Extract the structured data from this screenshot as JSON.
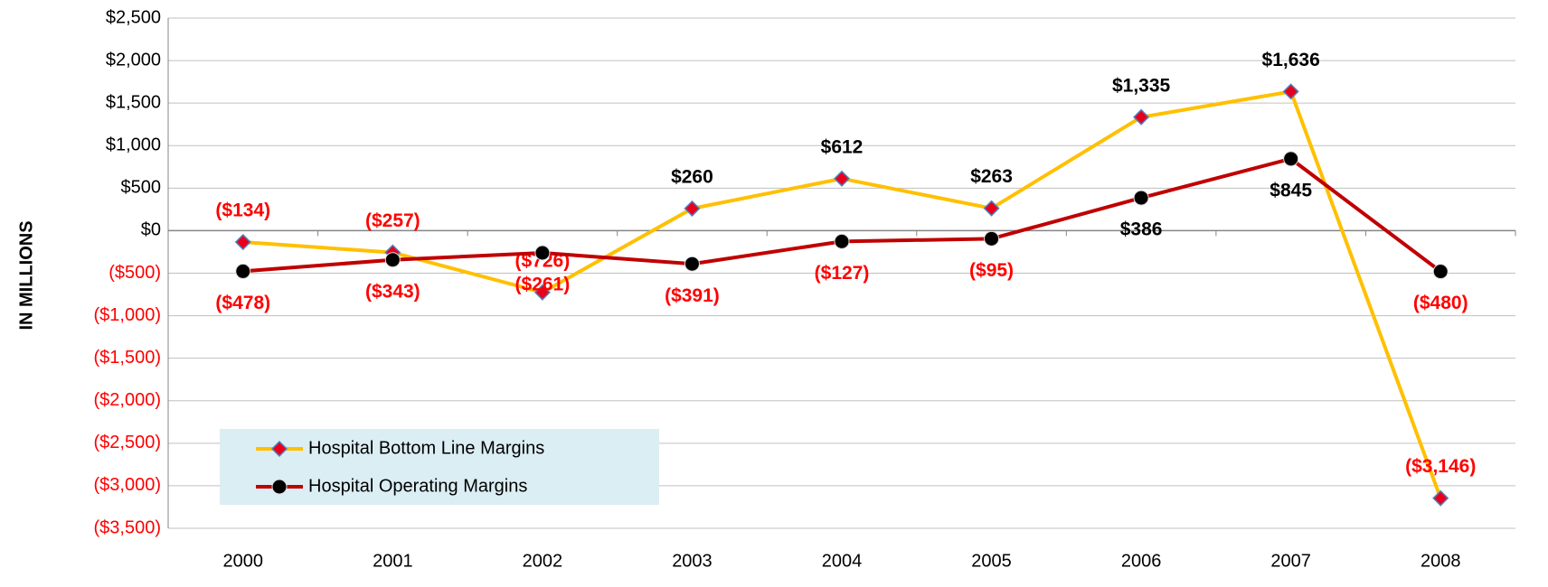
{
  "chart_data": {
    "type": "line",
    "y_axis_label": "IN MILLIONS",
    "categories": [
      "2000",
      "2001",
      "2002",
      "2003",
      "2004",
      "2005",
      "2006",
      "2007",
      "2008"
    ],
    "series": [
      {
        "name": "Hospital Bottom Line Margins",
        "color": "#ffc000",
        "marker": "diamond",
        "marker_color": "#e8001c",
        "values": [
          -134,
          -257,
          -726,
          260,
          612,
          263,
          1335,
          1636,
          -3146
        ],
        "value_labels": [
          "($134)",
          "($257)",
          "($726)",
          "$260",
          "$612",
          "$263",
          "$1,335",
          "$1,636",
          "($3,146)"
        ]
      },
      {
        "name": "Hospital Operating Margins",
        "color": "#c00000",
        "marker": "circle",
        "marker_color": "#000000",
        "values": [
          -478,
          -343,
          -261,
          -391,
          -127,
          -95,
          386,
          845,
          -480
        ],
        "value_labels": [
          "($478)",
          "($343)",
          "($261)",
          "($391)",
          "($127)",
          "($95)",
          "$386",
          "$845",
          "($480)"
        ]
      }
    ],
    "ylim": [
      -3500,
      2500
    ],
    "yticks": [
      {
        "value": 2500,
        "label": "$2,500"
      },
      {
        "value": 2000,
        "label": "$2,000"
      },
      {
        "value": 1500,
        "label": "$1,500"
      },
      {
        "value": 1000,
        "label": "$1,000"
      },
      {
        "value": 500,
        "label": "$500"
      },
      {
        "value": 0,
        "label": "$0"
      },
      {
        "value": -500,
        "label": "($500)"
      },
      {
        "value": -1000,
        "label": "($1,000)"
      },
      {
        "value": -1500,
        "label": "($1,500)"
      },
      {
        "value": -2000,
        "label": "($2,000)"
      },
      {
        "value": -2500,
        "label": "($2,500)"
      },
      {
        "value": -3000,
        "label": "($3,000)"
      },
      {
        "value": -3500,
        "label": "($3,500)"
      }
    ],
    "grid": true,
    "legend": "lower left"
  }
}
